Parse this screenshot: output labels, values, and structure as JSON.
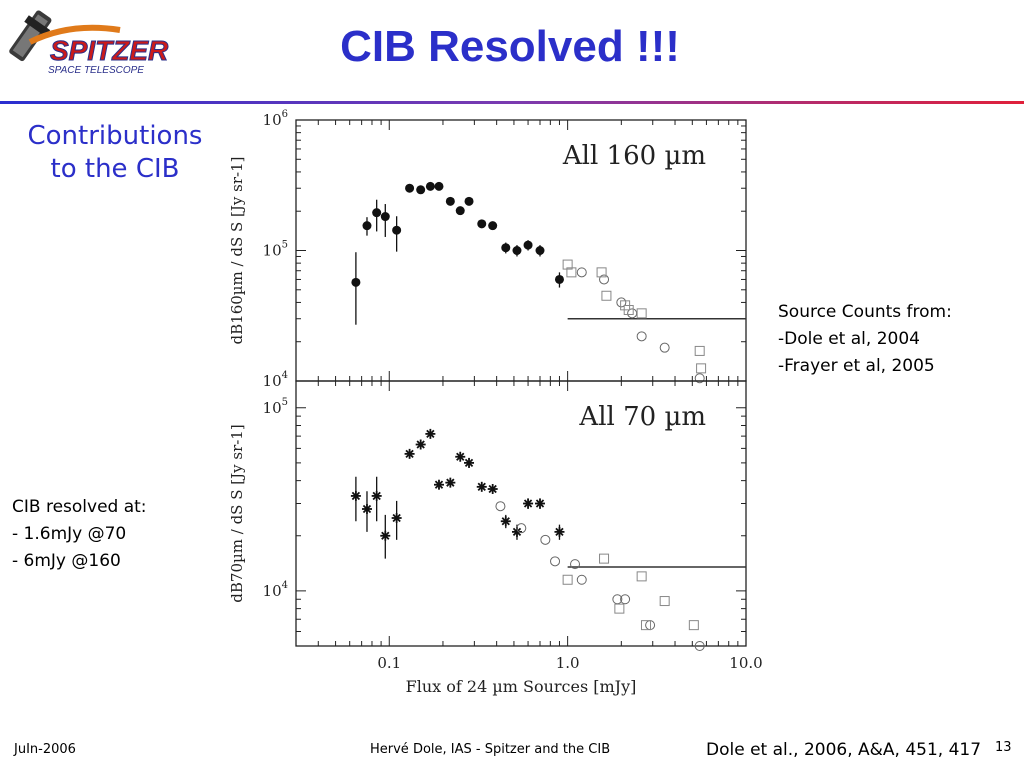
{
  "slide": {
    "title": "CIB Resolved !!!",
    "logo_text": "SPITZER",
    "logo_subtext": "SPACE TELESCOPE",
    "left_heading": [
      "Contributions",
      "to the CIB"
    ],
    "source_counts": [
      "Source Counts from:",
      "-Dole et al, 2004",
      "-Frayer et al, 2005"
    ],
    "cib_resolved": [
      "CIB resolved at:",
      "- 1.6mJy @70",
      "- 6mJy @160"
    ],
    "footer_left": "JuIn-2006",
    "footer_center": "Hervé Dole, IAS - Spitzer and the CIB",
    "footer_reference": "Dole et al., 2006, A&A, 451, 417",
    "page_number": "13",
    "colors": {
      "title": "#2b2fc9",
      "rule_start": "#2a2fd0",
      "rule_end": "#e0203a"
    }
  },
  "chart_data": [
    {
      "type": "scatter",
      "title": "All 160 µm",
      "ylabel": "dB160µm / dS S [Jy sr-1]",
      "xscale": "log",
      "yscale": "log",
      "xlim": [
        0.03,
        10
      ],
      "ylim": [
        10000,
        1000000
      ],
      "yticks": [
        "10^4",
        "10^5",
        "10^6"
      ],
      "hline": {
        "y": 30000,
        "x_from": 1.0,
        "x_to": 10
      },
      "series": [
        {
          "marker": "filled-circle",
          "x": [
            0.065,
            0.075,
            0.085,
            0.095,
            0.11,
            0.13,
            0.15,
            0.17,
            0.19,
            0.22,
            0.25,
            0.28,
            0.33,
            0.38,
            0.45,
            0.52,
            0.6,
            0.7,
            0.9
          ],
          "y": [
            57000,
            155000,
            195000,
            182000,
            143000,
            300000,
            292000,
            310000,
            310000,
            238000,
            202000,
            238000,
            160000,
            155000,
            105000,
            100000,
            110000,
            100000,
            60000
          ],
          "yerr_low": [
            30000,
            25000,
            55000,
            55000,
            45000,
            10000,
            10000,
            10000,
            20000,
            10000,
            10000,
            10000,
            10000,
            10000,
            10000,
            10000,
            10000,
            10000,
            8000
          ],
          "yerr_high": [
            40000,
            25000,
            50000,
            45000,
            40000,
            10000,
            10000,
            10000,
            20000,
            10000,
            10000,
            10000,
            10000,
            10000,
            10000,
            10000,
            10000,
            10000,
            8000
          ]
        },
        {
          "marker": "open-circle",
          "x": [
            1.2,
            1.6,
            2.0,
            2.3,
            2.6,
            3.5,
            5.5
          ],
          "y": [
            68000,
            60000,
            40000,
            33000,
            22000,
            18000,
            10500
          ]
        },
        {
          "marker": "open-square",
          "x": [
            1.0,
            1.05,
            1.55,
            1.65,
            2.1,
            2.2,
            2.6,
            5.5,
            5.6
          ],
          "y": [
            78000,
            68000,
            68000,
            45000,
            38000,
            35000,
            33000,
            17000,
            12500
          ]
        }
      ]
    },
    {
      "type": "scatter",
      "title": "All 70 µm",
      "ylabel": "dB70µm / dS S [Jy sr-1]",
      "xlabel": "Flux of 24 µm Sources [mJy]",
      "xscale": "log",
      "yscale": "log",
      "xlim": [
        0.03,
        10
      ],
      "ylim": [
        5000,
        140000
      ],
      "xticks": [
        "0.1",
        "1.0",
        "10.0"
      ],
      "yticks": [
        "10^4",
        "10^5"
      ],
      "hline": {
        "y": 13500,
        "x_from": 1.0,
        "x_to": 10
      },
      "series": [
        {
          "marker": "star",
          "x": [
            0.065,
            0.075,
            0.085,
            0.095,
            0.11,
            0.13,
            0.15,
            0.17,
            0.19,
            0.22,
            0.25,
            0.28,
            0.33,
            0.38,
            0.45,
            0.52,
            0.6,
            0.7,
            0.9
          ],
          "y": [
            33000,
            28000,
            33000,
            20000,
            25000,
            56000,
            63000,
            72000,
            38000,
            39000,
            54000,
            50000,
            37000,
            36000,
            24000,
            21000,
            30000,
            30000,
            21000
          ],
          "yerr_low": [
            9000,
            7000,
            9000,
            5000,
            6000,
            3000,
            3000,
            3000,
            2000,
            2000,
            3000,
            3000,
            2000,
            2000,
            2000,
            2000,
            2000,
            2000,
            2000
          ],
          "yerr_high": [
            9000,
            7000,
            9000,
            6000,
            6000,
            3000,
            3000,
            3000,
            2000,
            2000,
            3000,
            3000,
            2000,
            2000,
            2000,
            2000,
            2000,
            2000,
            2000
          ]
        },
        {
          "marker": "open-circle",
          "x": [
            0.42,
            0.55,
            0.75,
            0.85,
            1.1,
            1.2,
            1.9,
            2.1,
            2.9,
            5.5
          ],
          "y": [
            29000,
            22000,
            19000,
            14500,
            14000,
            11500,
            9000,
            9000,
            6500,
            5000
          ]
        },
        {
          "marker": "open-square",
          "x": [
            1.0,
            1.6,
            1.95,
            2.6,
            2.75,
            3.5,
            5.1
          ],
          "y": [
            11500,
            15000,
            8000,
            12000,
            6500,
            8800,
            6500
          ]
        }
      ]
    }
  ]
}
